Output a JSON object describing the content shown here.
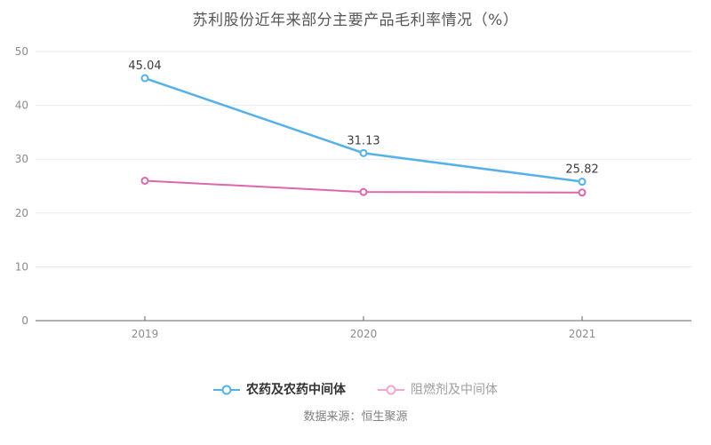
{
  "chart_data": {
    "type": "line",
    "title": "苏利股份近年来部分主要产品毛利率情况（%）",
    "categories": [
      "2019",
      "2020",
      "2021"
    ],
    "series": [
      {
        "name": "农药及农药中间体",
        "color": "#55b1e8",
        "values": [
          45.04,
          31.13,
          25.82
        ],
        "labels": [
          "45.04",
          "31.13",
          "25.82"
        ],
        "line_width": 2.5,
        "legend_marker_color": "#55b1e8",
        "legend_text_color": "#333333"
      },
      {
        "name": "阻燃剂及中间体",
        "color": "#dd66ac",
        "values": [
          26.0,
          23.9,
          23.8
        ],
        "labels": [
          "",
          "",
          ""
        ],
        "line_width": 2,
        "legend_marker_color": "#f2a6d1",
        "legend_text_color": "#9e9e9e"
      }
    ],
    "ylim": [
      0,
      50
    ],
    "yticks": [
      0,
      10,
      20,
      30,
      40,
      50
    ],
    "grid": true,
    "legend_position": "bottom",
    "style": {
      "grid_color": "#e7eaf6",
      "axis_color": "#63666c",
      "tick_label_color": "#8c8c8c",
      "point_label_color": "#3d3d3d"
    }
  },
  "footer": {
    "source": "数据来源：恒生聚源"
  }
}
